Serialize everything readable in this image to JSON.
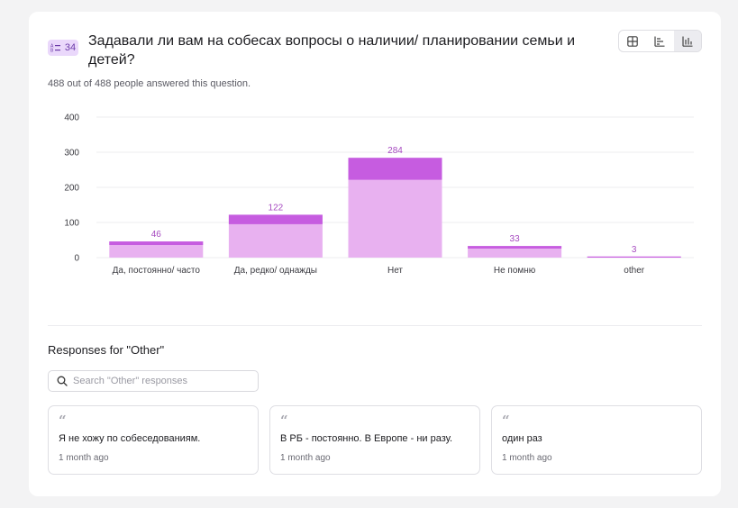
{
  "question": {
    "number": "34",
    "title": "Задавали ли вам на собесах вопросы о наличии/ планировании семьи и детей?",
    "answered_text": "488 out of 488 people answered this question."
  },
  "view_toggle": {
    "options": [
      "table-view-icon",
      "bar-chart-horizontal-icon",
      "bar-chart-vertical-icon"
    ],
    "active": 2
  },
  "colors": {
    "accent": "#c65ce0",
    "bar_base": "#e8b1f0",
    "bar_top": "#c65ce0",
    "label": "#a64ac0",
    "badge_bg": "#ead8fb"
  },
  "chart_data": {
    "type": "bar",
    "categories": [
      "Да, постоянно/ часто",
      "Да, редко/ однажды",
      "Нет",
      "Не помню",
      "other"
    ],
    "values": [
      46,
      122,
      284,
      33,
      3
    ],
    "ylim": [
      0,
      400
    ],
    "yticks": [
      0,
      100,
      200,
      300,
      400
    ],
    "grid": true,
    "xlabel": "",
    "ylabel": ""
  },
  "other_section": {
    "title": "Responses for \"Other\"",
    "search_placeholder": "Search \"Other\" responses",
    "responses": [
      {
        "text": "Я не хожу по собеседованиям.",
        "time": "1 month ago"
      },
      {
        "text": "В РБ - постоянно. В Европе - ни разу.",
        "time": "1 month ago"
      },
      {
        "text": "один раз",
        "time": "1 month ago"
      }
    ]
  }
}
